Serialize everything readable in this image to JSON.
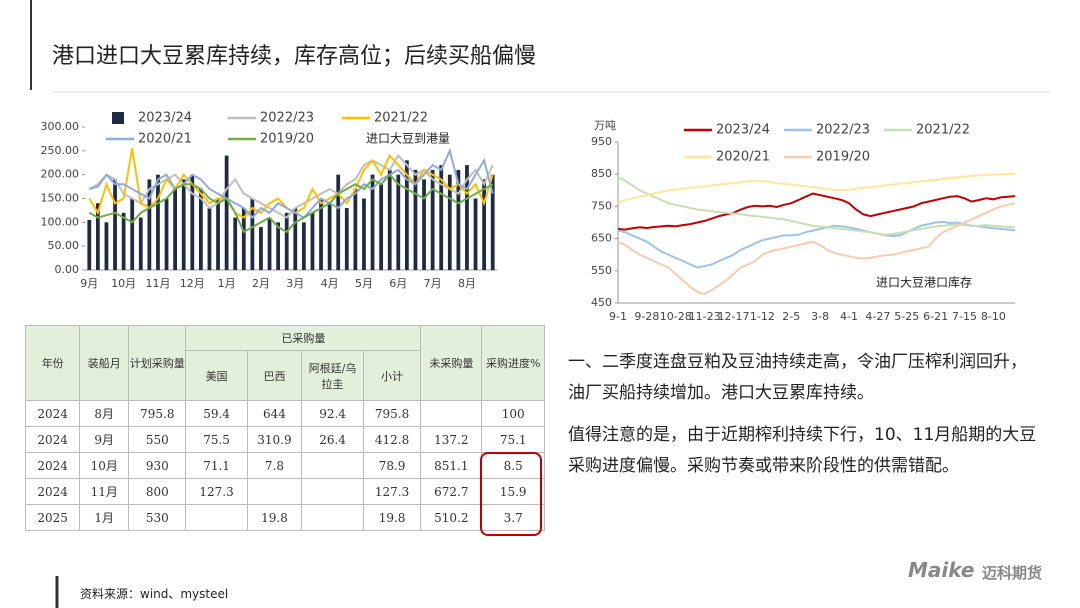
{
  "title": "港口进口大豆累库持续，库存高位；后续买船偏慢",
  "chart_data": [
    {
      "type": "combo",
      "annotation": "进口大豆到港量",
      "categories": [
        "9月",
        null,
        null,
        null,
        "10月",
        null,
        null,
        null,
        "11月",
        null,
        null,
        null,
        "12月",
        null,
        null,
        null,
        "1月",
        null,
        null,
        null,
        "2月",
        null,
        null,
        null,
        "3月",
        null,
        null,
        null,
        "4月",
        null,
        null,
        null,
        "5月",
        null,
        null,
        null,
        "6月",
        null,
        null,
        null,
        "7月",
        null,
        null,
        null,
        "8月",
        null,
        null,
        null
      ],
      "ylim": [
        0,
        300
      ],
      "yticks": [
        {
          "value": 0,
          "label": "0.00"
        },
        {
          "value": 50,
          "label": "50.00"
        },
        {
          "value": 100,
          "label": "100.00"
        },
        {
          "value": 150,
          "label": "150.00"
        },
        {
          "value": 200,
          "label": "200.00"
        },
        {
          "value": 250,
          "label": "250.00"
        },
        {
          "value": 300,
          "label": "300.00"
        }
      ],
      "grid": false,
      "series": [
        {
          "name": "2023/24",
          "type": "bar",
          "color": "#1f2a44",
          "values": [
            105,
            140,
            100,
            190,
            120,
            150,
            110,
            190,
            200,
            150,
            170,
            190,
            200,
            170,
            130,
            150,
            240,
            110,
            130,
            150,
            90,
            110,
            100,
            120,
            130,
            100,
            120,
            150,
            140,
            200,
            130,
            170,
            150,
            200,
            180,
            210,
            200,
            230,
            210,
            190,
            210,
            220,
            200,
            210,
            220,
            150,
            190,
            200
          ]
        },
        {
          "name": "2022/23",
          "type": "line",
          "color": "#bfbfbf",
          "values": [
            170,
            180,
            200,
            190,
            160,
            150,
            140,
            170,
            180,
            190,
            200,
            180,
            160,
            150,
            130,
            140,
            170,
            190,
            160,
            150,
            140,
            130,
            120,
            110,
            130,
            140,
            150,
            160,
            170,
            160,
            180,
            190,
            220,
            230,
            220,
            210,
            240,
            220,
            200,
            210,
            190,
            180,
            170,
            160,
            190,
            210,
            180,
            220
          ]
        },
        {
          "name": "2021/22",
          "type": "line",
          "color": "#ffc000",
          "values": [
            150,
            120,
            180,
            140,
            150,
            255,
            140,
            130,
            150,
            190,
            170,
            200,
            180,
            160,
            140,
            150,
            150,
            120,
            110,
            130,
            120,
            140,
            150,
            130,
            120,
            130,
            170,
            140,
            150,
            160,
            140,
            170,
            210,
            230,
            200,
            240,
            220,
            200,
            180,
            210,
            200,
            190,
            170,
            180,
            160,
            180,
            140,
            200
          ]
        },
        {
          "name": "2020/21",
          "type": "line",
          "color": "#8faadc",
          "values": [
            170,
            175,
            200,
            180,
            180,
            170,
            160,
            150,
            190,
            200,
            170,
            180,
            200,
            190,
            170,
            160,
            150,
            140,
            130,
            110,
            130,
            120,
            140,
            130,
            120,
            110,
            130,
            150,
            140,
            130,
            150,
            160,
            180,
            170,
            190,
            200,
            210,
            190,
            180,
            200,
            220,
            210,
            250,
            180,
            170,
            200,
            230,
            160
          ]
        },
        {
          "name": "2019/20",
          "type": "line",
          "color": "#70ad47",
          "values": [
            120,
            110,
            115,
            120,
            110,
            100,
            120,
            130,
            140,
            150,
            170,
            180,
            180,
            170,
            150,
            140,
            150,
            120,
            80,
            90,
            100,
            110,
            90,
            80,
            100,
            110,
            120,
            130,
            140,
            160,
            170,
            180,
            170,
            190,
            180,
            200,
            180,
            170,
            160,
            150,
            170,
            160,
            150,
            140,
            150,
            160,
            170,
            180
          ]
        }
      ]
    },
    {
      "type": "line",
      "ylabel": "万吨",
      "annotation": "进口大豆港口库存",
      "categories": [
        "9-1",
        null,
        null,
        null,
        "9-28",
        null,
        null,
        null,
        "10-28",
        null,
        null,
        null,
        "11-23",
        null,
        null,
        null,
        "12-17",
        null,
        null,
        null,
        "1-12",
        null,
        null,
        null,
        "2-5",
        null,
        null,
        null,
        "3-8",
        null,
        null,
        null,
        "4-1",
        null,
        null,
        null,
        "4-27",
        null,
        null,
        null,
        "5-25",
        null,
        null,
        null,
        "6-21",
        null,
        null,
        null,
        "7-15",
        null,
        null,
        null,
        "8-10",
        null,
        null,
        null
      ],
      "ylim": [
        450,
        950
      ],
      "yticks": [
        450,
        550,
        650,
        750,
        850,
        950
      ],
      "grid": false,
      "series": [
        {
          "name": "2023/24",
          "color": "#c00000",
          "values": [
            680,
            678,
            682,
            685,
            683,
            686,
            688,
            690,
            688,
            692,
            695,
            700,
            705,
            712,
            720,
            725,
            730,
            740,
            748,
            752,
            750,
            752,
            748,
            755,
            760,
            770,
            780,
            790,
            785,
            780,
            775,
            770,
            760,
            740,
            725,
            720,
            725,
            730,
            735,
            740,
            745,
            750,
            760,
            765,
            770,
            775,
            780,
            782,
            775,
            765,
            770,
            775,
            772,
            778,
            780,
            782
          ]
        },
        {
          "name": "2022/23",
          "color": "#9dc3e6",
          "values": [
            675,
            670,
            660,
            650,
            640,
            625,
            610,
            600,
            590,
            580,
            570,
            560,
            565,
            570,
            580,
            590,
            600,
            615,
            625,
            635,
            645,
            650,
            655,
            660,
            660,
            662,
            670,
            675,
            680,
            685,
            690,
            688,
            685,
            680,
            675,
            670,
            665,
            660,
            658,
            660,
            670,
            680,
            690,
            695,
            700,
            702,
            698,
            700,
            695,
            690,
            688,
            685,
            682,
            680,
            678,
            676
          ]
        },
        {
          "name": "2021/22",
          "color": "#c5e0b4",
          "values": [
            840,
            830,
            815,
            800,
            790,
            780,
            770,
            760,
            755,
            750,
            745,
            740,
            738,
            735,
            732,
            730,
            728,
            725,
            722,
            720,
            718,
            715,
            712,
            710,
            705,
            700,
            695,
            690,
            688,
            685,
            682,
            680,
            678,
            675,
            672,
            670,
            665,
            662,
            664,
            668,
            672,
            676,
            680,
            684,
            688,
            690,
            692,
            694,
            692,
            690,
            690,
            692,
            690,
            688,
            686,
            685
          ]
        },
        {
          "name": "2020/21",
          "color": "#ffe699",
          "values": [
            760,
            770,
            775,
            780,
            785,
            790,
            795,
            800,
            802,
            805,
            808,
            810,
            812,
            815,
            818,
            820,
            822,
            825,
            828,
            830,
            828,
            826,
            822,
            820,
            818,
            815,
            812,
            810,
            808,
            805,
            802,
            800,
            802,
            805,
            808,
            810,
            812,
            815,
            818,
            820,
            822,
            825,
            828,
            830,
            832,
            835,
            838,
            840,
            842,
            845,
            846,
            848,
            848,
            850,
            852,
            850
          ]
        },
        {
          "name": "2019/20",
          "color": "#f8cbad",
          "values": [
            640,
            630,
            615,
            600,
            590,
            580,
            570,
            560,
            540,
            520,
            500,
            485,
            478,
            490,
            505,
            520,
            540,
            560,
            570,
            580,
            600,
            610,
            615,
            620,
            625,
            630,
            635,
            640,
            630,
            615,
            605,
            600,
            595,
            590,
            588,
            590,
            595,
            598,
            600,
            605,
            610,
            615,
            620,
            625,
            650,
            670,
            680,
            690,
            700,
            710,
            720,
            730,
            740,
            750,
            755,
            760
          ]
        }
      ]
    }
  ],
  "table": {
    "headers": [
      "年份",
      "装船月",
      "计划采购量",
      "已采购量",
      "未采购量",
      "采购进度%"
    ],
    "subheaders": [
      "美国",
      "巴西",
      "阿根廷/乌拉圭",
      "小计"
    ],
    "rows": [
      [
        "2024",
        "8月",
        "795.8",
        "59.4",
        "644",
        "92.4",
        "795.8",
        null,
        "100"
      ],
      [
        "2024",
        "9月",
        "550",
        "75.5",
        "310.9",
        "26.4",
        "412.8",
        "137.2",
        "75.1"
      ],
      [
        "2024",
        "10月",
        "930",
        "71.1",
        "7.8",
        null,
        "78.9",
        "851.1",
        "8.5"
      ],
      [
        "2024",
        "11月",
        "800",
        "127.3",
        null,
        null,
        "127.3",
        "672.7",
        "15.9"
      ],
      [
        "2025",
        "1月",
        "530",
        null,
        "19.8",
        null,
        "19.8",
        "510.2",
        "3.7"
      ]
    ]
  },
  "paragraphs": [
    "一、二季度连盘豆粕及豆油持续走高，令油厂压榨利润回升，油厂买船持续增加。港口大豆累库持续。",
    "值得注意的是，由于近期榨利持续下行，10、11月船期的大豆采购进度偏慢。采购节奏或带来阶段性的供需错配。"
  ],
  "source": "资料来源：wind、mysteel",
  "logo": {
    "mark": "Maike",
    "name": "迈科期货"
  }
}
